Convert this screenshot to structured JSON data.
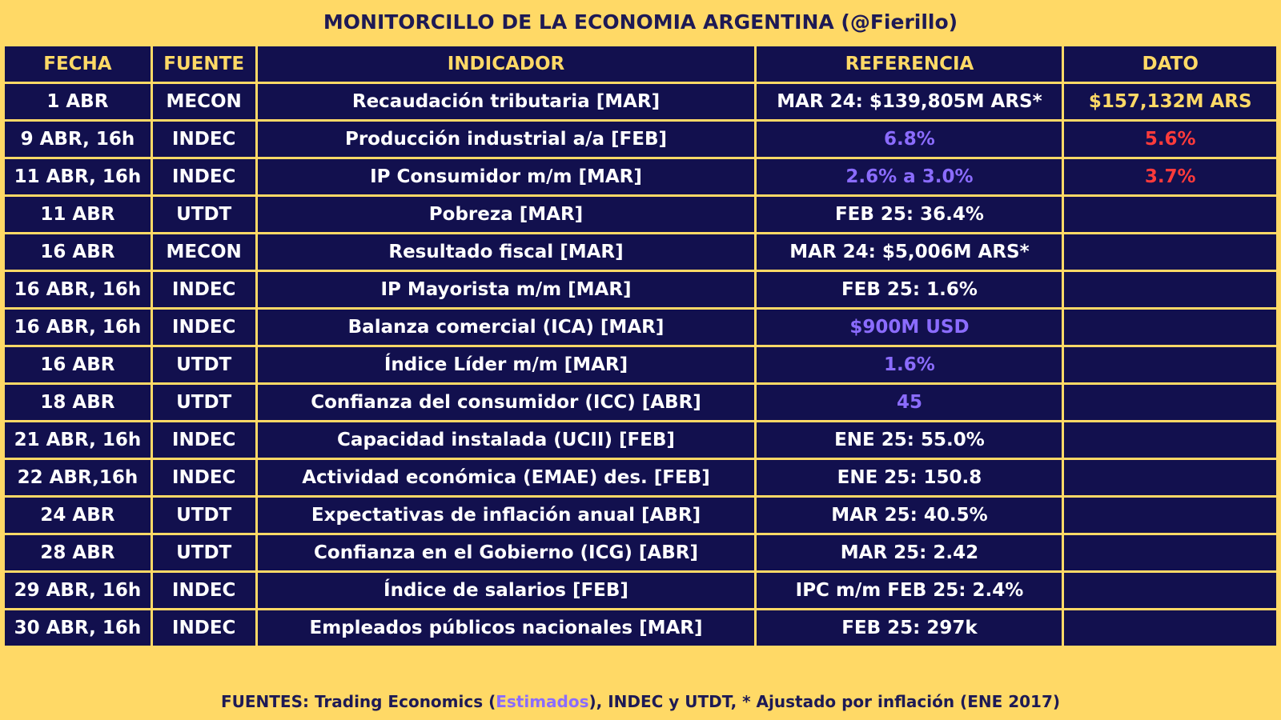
{
  "title": "MONITORCILLO DE LA ECONOMIA ARGENTINA (@Fierillo)",
  "colors": {
    "background": "#FFD966",
    "cell": "#12104E",
    "estimate": "#8B6CFF",
    "actual_red": "#FF3B3B",
    "actual_yellow": "#FFD966",
    "title_text": "#1E1A55"
  },
  "headers": [
    "FECHA",
    "FUENTE",
    "INDICADOR",
    "REFERENCIA",
    "DATO"
  ],
  "rows": [
    {
      "fecha": "1 ABR",
      "fuente": "MECON",
      "indicador": "Recaudación tributaria [MAR]",
      "referencia": "MAR 24: $139,805M ARS*",
      "dato": "$157,132M ARS",
      "ref_style": "plain",
      "dato_style": "yellow"
    },
    {
      "fecha": "9 ABR, 16h",
      "fuente": "INDEC",
      "indicador": "Producción industrial a/a [FEB]",
      "referencia": "6.8%",
      "dato": "5.6%",
      "ref_style": "estimate",
      "dato_style": "red"
    },
    {
      "fecha": "11 ABR, 16h",
      "fuente": "INDEC",
      "indicador": "IP Consumidor m/m [MAR]",
      "referencia": "2.6% a 3.0%",
      "dato": "3.7%",
      "ref_style": "estimate",
      "dato_style": "red"
    },
    {
      "fecha": "11 ABR",
      "fuente": "UTDT",
      "indicador": "Pobreza [MAR]",
      "referencia": "FEB 25: 36.4%",
      "dato": "",
      "ref_style": "plain",
      "dato_style": "plain"
    },
    {
      "fecha": "16 ABR",
      "fuente": "MECON",
      "indicador": "Resultado fiscal [MAR]",
      "referencia": "MAR 24: $5,006M ARS*",
      "dato": "",
      "ref_style": "plain",
      "dato_style": "plain"
    },
    {
      "fecha": "16 ABR, 16h",
      "fuente": "INDEC",
      "indicador": "IP Mayorista m/m [MAR]",
      "referencia": "FEB 25: 1.6%",
      "dato": "",
      "ref_style": "plain",
      "dato_style": "plain"
    },
    {
      "fecha": "16 ABR, 16h",
      "fuente": "INDEC",
      "indicador": "Balanza comercial (ICA) [MAR]",
      "referencia": "$900M USD",
      "dato": "",
      "ref_style": "estimate",
      "dato_style": "plain"
    },
    {
      "fecha": "16 ABR",
      "fuente": "UTDT",
      "indicador": "Índice Líder m/m [MAR]",
      "referencia": "1.6%",
      "dato": "",
      "ref_style": "estimate",
      "dato_style": "plain"
    },
    {
      "fecha": "18 ABR",
      "fuente": "UTDT",
      "indicador": "Confianza del consumidor (ICC) [ABR]",
      "referencia": "45",
      "dato": "",
      "ref_style": "estimate",
      "dato_style": "plain"
    },
    {
      "fecha": "21 ABR, 16h",
      "fuente": "INDEC",
      "indicador": "Capacidad instalada (UCII) [FEB]",
      "referencia": "ENE 25: 55.0%",
      "dato": "",
      "ref_style": "plain",
      "dato_style": "plain"
    },
    {
      "fecha": "22 ABR,16h",
      "fuente": "INDEC",
      "indicador": "Actividad económica (EMAE) des. [FEB]",
      "referencia": "ENE 25: 150.8",
      "dato": "",
      "ref_style": "plain",
      "dato_style": "plain"
    },
    {
      "fecha": "24 ABR",
      "fuente": "UTDT",
      "indicador": "Expectativas de inflación anual [ABR]",
      "referencia": "MAR 25: 40.5%",
      "dato": "",
      "ref_style": "plain",
      "dato_style": "plain"
    },
    {
      "fecha": "28 ABR",
      "fuente": "UTDT",
      "indicador": "Confianza en el Gobierno (ICG) [ABR]",
      "referencia": "MAR 25: 2.42",
      "dato": "",
      "ref_style": "plain",
      "dato_style": "plain"
    },
    {
      "fecha": "29 ABR, 16h",
      "fuente": "INDEC",
      "indicador": "Índice de salarios [FEB]",
      "referencia": "IPC m/m FEB 25: 2.4%",
      "dato": "",
      "ref_style": "plain",
      "dato_style": "plain"
    },
    {
      "fecha": "30 ABR, 16h",
      "fuente": "INDEC",
      "indicador": "Empleados públicos nacionales [MAR]",
      "referencia": "FEB 25: 297k",
      "dato": "",
      "ref_style": "plain",
      "dato_style": "plain"
    }
  ],
  "footer": {
    "prefix": "FUENTES: Trading Economics (",
    "estimates_word": "Estimados",
    "suffix": "), INDEC y UTDT, * Ajustado por inflación (ENE 2017)"
  }
}
